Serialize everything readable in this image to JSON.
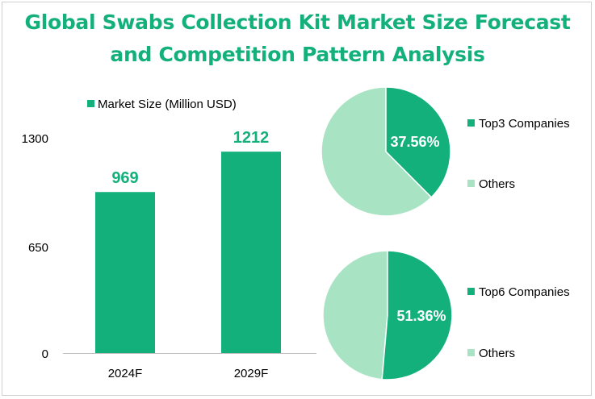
{
  "title_line1": "Global Swabs Collection Kit Market Size Forecast",
  "title_line2": "and Competition Pattern Analysis",
  "colors": {
    "accent": "#14b07c",
    "light": "#a8e4c3",
    "text": "#000000"
  },
  "chart_data": [
    {
      "type": "bar",
      "legend": "Market Size (Million USD)",
      "categories": [
        "2024F",
        "2029F"
      ],
      "values": [
        969,
        1212
      ],
      "data_labels": [
        "969",
        "1212"
      ],
      "y_ticks": [
        "0",
        "650",
        "1300"
      ],
      "ylim": [
        0,
        1300
      ],
      "grid": false
    },
    {
      "type": "pie",
      "slices": [
        {
          "name": "Top3 Companies",
          "value": 37.56
        },
        {
          "name": "Others",
          "value": 62.44
        }
      ],
      "data_label": "37.56%",
      "legend_position": "right"
    },
    {
      "type": "pie",
      "slices": [
        {
          "name": "Top6 Companies",
          "value": 51.36
        },
        {
          "name": "Others",
          "value": 48.64
        }
      ],
      "data_label": "51.36%",
      "legend_position": "right"
    }
  ]
}
